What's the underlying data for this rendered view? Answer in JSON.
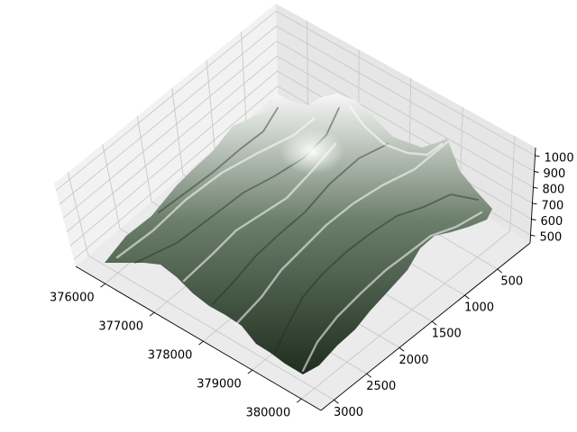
{
  "chart_data": {
    "type": "surface",
    "title": "",
    "xlabel": "",
    "ylabel": "",
    "zlabel": "",
    "grid": true,
    "colors": {
      "pane_floor": "#ebebeb",
      "pane_left": "#f2f2f2",
      "pane_right": "#e6e6e6",
      "grid": "#c8c8c8",
      "surface_dark": "#1f2e1f",
      "surface_mid": "#6b7f6b",
      "surface_light": "#f7f7f7"
    },
    "x_axis": {
      "ticks": [
        376000,
        377000,
        378000,
        379000,
        380000
      ],
      "tick_labels": [
        "376000",
        "377000",
        "378000",
        "379000",
        "380000"
      ],
      "range": [
        375400,
        380400
      ]
    },
    "y_axis": {
      "ticks": [
        500,
        1000,
        1500,
        2000,
        2500,
        3000
      ],
      "tick_labels": [
        "500",
        "1000",
        "1500",
        "2000",
        "2500",
        "3000"
      ],
      "range": [
        0,
        3200
      ]
    },
    "z_axis": {
      "ticks": [
        500,
        600,
        700,
        800,
        900,
        1000
      ],
      "tick_labels": [
        "500",
        "600",
        "700",
        "800",
        "900",
        "1000"
      ],
      "range": [
        450,
        1050
      ]
    },
    "surface": {
      "description_free": true,
      "peak": {
        "x": 378200,
        "y": 800,
        "z": 1000
      }
    }
  }
}
